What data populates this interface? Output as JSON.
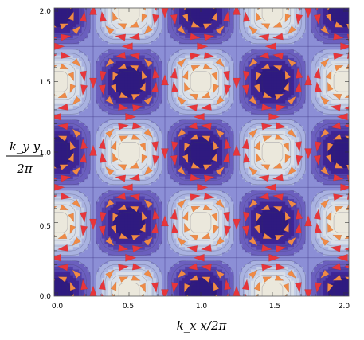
{
  "chart_data": {
    "type": "heatmap",
    "subtype": "contour plot with stream arrows",
    "title": "",
    "xlabel": "k_x x/2π",
    "ylabel": "k_y y / 2π",
    "x_tick_labels": [
      "0.0",
      "0.5",
      "1.0",
      "1.5",
      "2.0"
    ],
    "y_tick_labels": [
      "0.0",
      "0.5",
      "1.0",
      "1.5",
      "2.0"
    ],
    "xlim": [
      0,
      2
    ],
    "ylim": [
      0,
      2
    ],
    "function": "cos(2πx)·cos(2πy)",
    "dark_centers": [
      [
        0,
        0
      ],
      [
        1,
        0
      ],
      [
        2,
        0
      ],
      [
        0.5,
        0.5
      ],
      [
        1.5,
        0.5
      ],
      [
        0,
        1
      ],
      [
        1,
        1
      ],
      [
        2,
        1
      ],
      [
        0.5,
        1.5
      ],
      [
        1.5,
        1.5
      ],
      [
        0,
        2
      ],
      [
        1,
        2
      ],
      [
        2,
        2
      ]
    ],
    "light_centers": [
      [
        0.5,
        0
      ],
      [
        1.5,
        0
      ],
      [
        0,
        0.5
      ],
      [
        1,
        0.5
      ],
      [
        2,
        0.5
      ],
      [
        0.5,
        1
      ],
      [
        1.5,
        1
      ],
      [
        0,
        1.5
      ],
      [
        1,
        1.5
      ],
      [
        2,
        1.5
      ],
      [
        0.5,
        2
      ],
      [
        1.5,
        2
      ]
    ],
    "separatrix_x": [
      0.25,
      0.75,
      1.25,
      1.75
    ],
    "separatrix_y": [
      0.25,
      0.75,
      1.25,
      1.75
    ],
    "colors": {
      "dark": "#3b1d8f",
      "mid": "#8c8fd6",
      "light": "#ebe8dc",
      "stream_fast": "#e8353a",
      "stream_mid": "#f08a45",
      "stream_slow": "#8ec65a"
    },
    "grid": false,
    "legend": "none"
  }
}
